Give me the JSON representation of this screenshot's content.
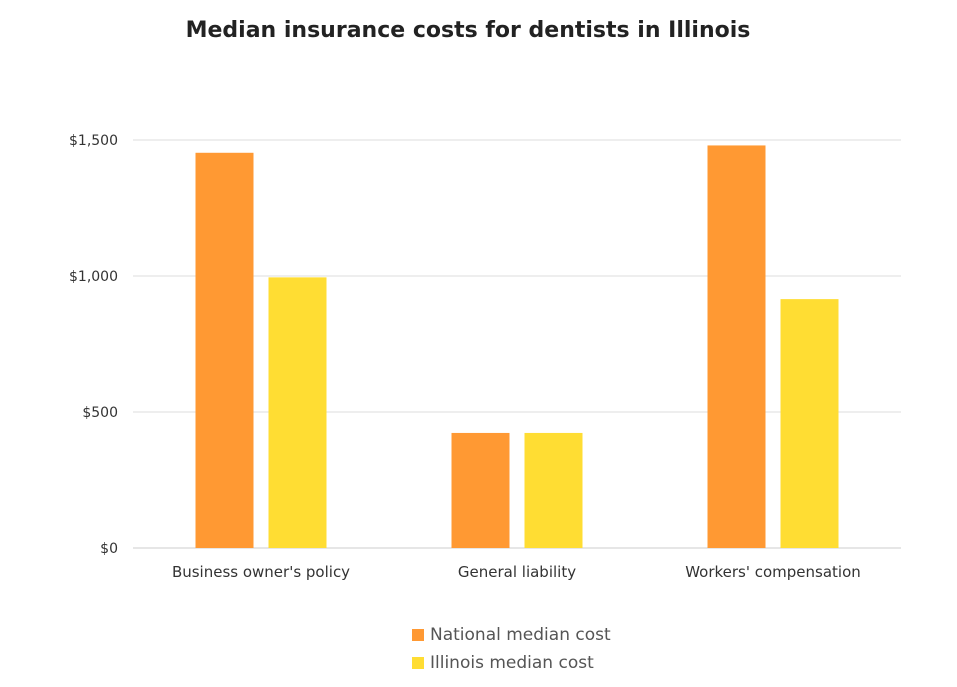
{
  "chart_data": {
    "type": "bar",
    "title": "Median insurance costs for dentists in Illinois",
    "xlabel": "",
    "ylabel": "",
    "categories": [
      "Business owner's policy",
      "General liability",
      "Workers' compensation"
    ],
    "series": [
      {
        "name": "National median cost",
        "values": [
          1453,
          423,
          1480
        ],
        "color": "#ff9933"
      },
      {
        "name": "Illinois median cost",
        "values": [
          995,
          423,
          915
        ],
        "color": "#ffdd33"
      }
    ],
    "ylim": [
      0,
      1500
    ],
    "yticks": [
      {
        "value": 0,
        "label": "$0"
      },
      {
        "value": 500,
        "label": "$500"
      },
      {
        "value": 1000,
        "label": "$1,000"
      },
      {
        "value": 1500,
        "label": "$1,500"
      }
    ],
    "grid": true,
    "legend_position": "bottom"
  }
}
